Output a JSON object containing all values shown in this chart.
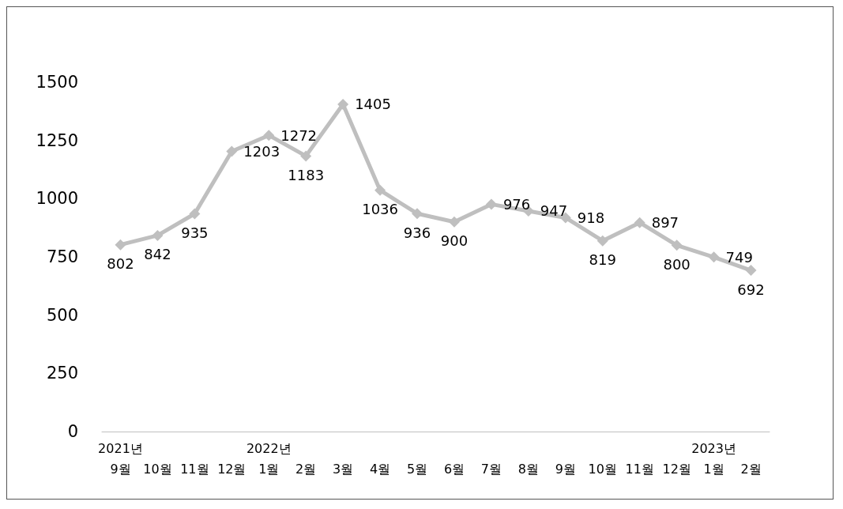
{
  "chart_data": {
    "type": "line",
    "categories": [
      "2021년 9월",
      "10월",
      "11월",
      "12월",
      "2022년 1월",
      "2월",
      "3월",
      "4월",
      "5월",
      "6월",
      "7월",
      "8월",
      "9월",
      "10월",
      "11월",
      "12월",
      "2023년 1월",
      "2월"
    ],
    "values": [
      802,
      842,
      935,
      1203,
      1272,
      1183,
      1405,
      1036,
      936,
      900,
      976,
      947,
      918,
      819,
      897,
      800,
      749,
      692
    ],
    "color": "#bfbfbf",
    "marker": "diamond",
    "data_labels": true,
    "ylim": [
      0,
      1500
    ],
    "yticks": [
      0,
      250,
      500,
      750,
      1000,
      1250,
      1500
    ],
    "grid": false
  }
}
